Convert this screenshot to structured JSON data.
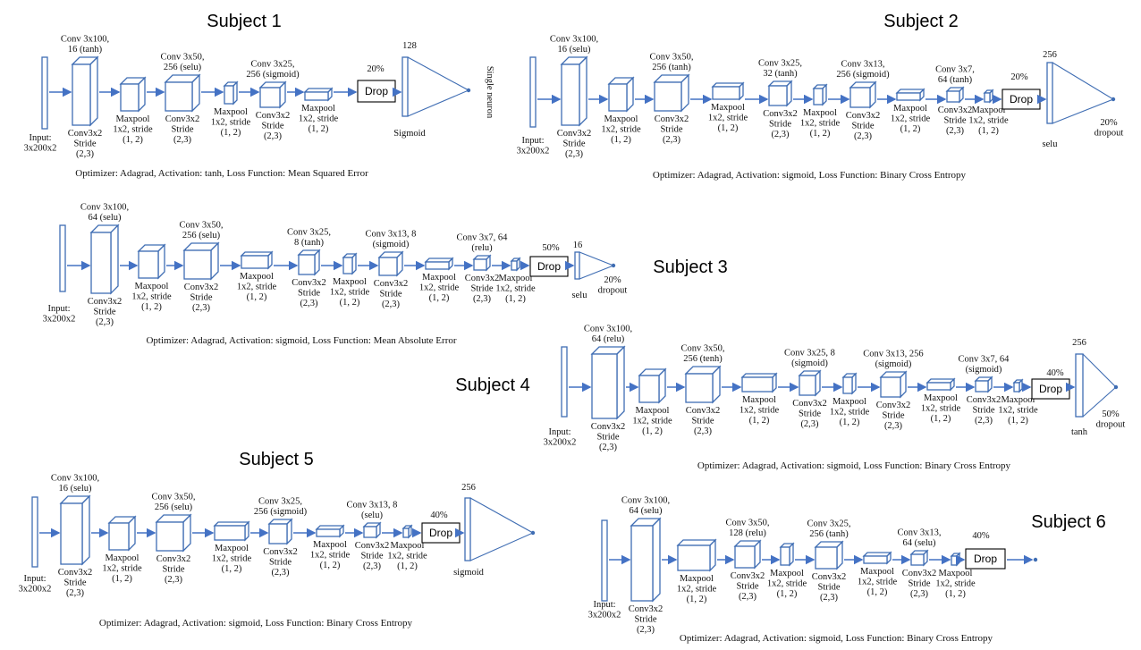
{
  "colors": {
    "box": "#3f6db3",
    "arrow": "#4472c4",
    "text": "#111111"
  },
  "subjects": [
    {
      "title": "Subject 1",
      "input_label": "Input:\n3x200x2",
      "layers": [
        {
          "kind": "conv",
          "top": "Conv 3x100,\n16 (tanh)",
          "bottom": "Conv3x2\nStride\n(2,3)"
        },
        {
          "kind": "pool",
          "top": "",
          "bottom": "Maxpool\n1x2, stride\n(1, 2)"
        },
        {
          "kind": "conv",
          "top": "Conv 3x50,\n256 (selu)",
          "bottom": "Conv3x2\nStride\n(2,3)"
        },
        {
          "kind": "pool",
          "top": "",
          "bottom": "Maxpool\n1x2, stride\n(1, 2)"
        },
        {
          "kind": "conv",
          "top": "Conv 3x25,\n256 (sigmoid)",
          "bottom": "Conv3x2\nStride\n(2,3)"
        },
        {
          "kind": "pool",
          "top": "",
          "bottom": "Maxpool\n1x2, stride\n(1, 2)"
        }
      ],
      "drop_label": "Drop",
      "drop_pct": "20%",
      "dense_units": "128",
      "dense_activation": "Sigmoid",
      "output_label": "Single neuron",
      "output_dropout": "",
      "footer": "Optimizer: Adagrad,  Activation: tanh,  Loss Function: Mean Squared Error"
    },
    {
      "title": "Subject 2",
      "input_label": "Input:\n3x200x2",
      "layers": [
        {
          "kind": "conv",
          "top": "Conv 3x100,\n16 (selu)",
          "bottom": "Conv3x2\nStride\n(2,3)"
        },
        {
          "kind": "pool",
          "top": "",
          "bottom": "Maxpool\n1x2, stride\n(1, 2)"
        },
        {
          "kind": "conv",
          "top": "Conv 3x50,\n256 (tanh)",
          "bottom": "Conv3x2\nStride\n(2,3)"
        },
        {
          "kind": "pool",
          "top": "",
          "bottom": "Maxpool\n1x2, stride\n(1, 2)"
        },
        {
          "kind": "conv",
          "top": "Conv 3x25,\n32 (tanh)",
          "bottom": "Conv3x2\nStride\n(2,3)"
        },
        {
          "kind": "pool",
          "top": "",
          "bottom": "Maxpool\n1x2, stride\n(1, 2)"
        },
        {
          "kind": "conv",
          "top": "Conv 3x13,\n256 (sigmoid)",
          "bottom": "Conv3x2\nStride\n(2,3)"
        },
        {
          "kind": "pool",
          "top": "",
          "bottom": "Maxpool\n1x2, stride\n(1, 2)"
        },
        {
          "kind": "conv",
          "top": "Conv 3x7,\n64 (tanh)",
          "bottom": "Conv3x2\nStride\n(2,3)"
        },
        {
          "kind": "pool",
          "top": "",
          "bottom": "Maxpool\n1x2, stride\n(1, 2)"
        }
      ],
      "drop_label": "Drop",
      "drop_pct": "20%",
      "dense_units": "256",
      "dense_activation": "selu",
      "output_label": "",
      "output_dropout": "20%\ndropout",
      "footer": "Optimizer: Adagrad,  Activation: sigmoid,  Loss Function: Binary Cross Entropy"
    },
    {
      "title": "Subject 3",
      "input_label": "Input:\n3x200x2",
      "layers": [
        {
          "kind": "conv",
          "top": "Conv 3x100,\n64 (selu)",
          "bottom": "Conv3x2\nStride\n(2,3)"
        },
        {
          "kind": "pool",
          "top": "",
          "bottom": "Maxpool\n1x2, stride\n(1, 2)"
        },
        {
          "kind": "conv",
          "top": "Conv 3x50,\n256 (selu)",
          "bottom": "Conv3x2\nStride\n(2,3)"
        },
        {
          "kind": "pool",
          "top": "",
          "bottom": "Maxpool\n1x2, stride\n(1, 2)"
        },
        {
          "kind": "conv",
          "top": "Conv 3x25,\n8 (tanh)",
          "bottom": "Conv3x2\nStride\n(2,3)"
        },
        {
          "kind": "pool",
          "top": "",
          "bottom": "Maxpool\n1x2, stride\n(1, 2)"
        },
        {
          "kind": "conv",
          "top": "Conv 3x13, 8\n(sigmoid)",
          "bottom": "Conv3x2\nStride\n(2,3)"
        },
        {
          "kind": "pool",
          "top": "",
          "bottom": "Maxpool\n1x2, stride\n(1, 2)"
        },
        {
          "kind": "conv",
          "top": "Conv 3x7, 64\n(relu)",
          "bottom": "Conv3x2\nStride\n(2,3)"
        },
        {
          "kind": "pool",
          "top": "",
          "bottom": "Maxpool\n1x2, stride\n(1, 2)"
        }
      ],
      "drop_label": "Drop",
      "drop_pct": "50%",
      "dense_units": "16",
      "dense_activation": "selu",
      "output_label": "",
      "output_dropout": "20%\ndropout",
      "footer": "Optimizer: Adagrad,  Activation: sigmoid,  Loss Function: Mean Absolute Error"
    },
    {
      "title": "Subject 4",
      "input_label": "Input:\n3x200x2",
      "layers": [
        {
          "kind": "conv",
          "top": "Conv 3x100,\n64 (relu)",
          "bottom": "Conv3x2\nStride\n(2,3)"
        },
        {
          "kind": "pool",
          "top": "",
          "bottom": "Maxpool\n1x2, stride\n(1, 2)"
        },
        {
          "kind": "conv",
          "top": "Conv 3x50,\n256 (tenh)",
          "bottom": "Conv3x2\nStride\n(2,3)"
        },
        {
          "kind": "pool",
          "top": "",
          "bottom": "Maxpool\n1x2, stride\n(1, 2)"
        },
        {
          "kind": "conv",
          "top": "Conv 3x25, 8\n(sigmoid)",
          "bottom": "Conv3x2\nStride\n(2,3)"
        },
        {
          "kind": "pool",
          "top": "",
          "bottom": "Maxpool\n1x2, stride\n(1, 2)"
        },
        {
          "kind": "conv",
          "top": "Conv 3x13, 256\n(sigmoid)",
          "bottom": "Conv3x2\nStride\n(2,3)"
        },
        {
          "kind": "pool",
          "top": "",
          "bottom": "Maxpool\n1x2, stride\n(1, 2)"
        },
        {
          "kind": "conv",
          "top": "Conv 3x7, 64\n(sigmoid)",
          "bottom": "Conv3x2\nStride\n(2,3)"
        },
        {
          "kind": "pool",
          "top": "",
          "bottom": "Maxpool\n1x2, stride\n(1, 2)"
        }
      ],
      "drop_label": "Drop",
      "drop_pct": "40%",
      "dense_units": "256",
      "dense_activation": "tanh",
      "output_label": "",
      "output_dropout": "50%\ndropout",
      "footer": "Optimizer: Adagrad,  Activation: sigmoid,  Loss Function: Binary Cross Entropy"
    },
    {
      "title": "Subject 5",
      "input_label": "Input:\n3x200x2",
      "layers": [
        {
          "kind": "conv",
          "top": "Conv 3x100,\n16 (selu)",
          "bottom": "Conv3x2\nStride\n(2,3)"
        },
        {
          "kind": "pool",
          "top": "",
          "bottom": "Maxpool\n1x2, stride\n(1, 2)"
        },
        {
          "kind": "conv",
          "top": "Conv 3x50,\n256 (selu)",
          "bottom": "Conv3x2\nStride\n(2,3)"
        },
        {
          "kind": "pool",
          "top": "",
          "bottom": "Maxpool\n1x2, stride\n(1, 2)"
        },
        {
          "kind": "conv",
          "top": "Conv 3x25,\n256 (sigmoid)",
          "bottom": "Conv3x2\nStride\n(2,3)"
        },
        {
          "kind": "pool",
          "top": "",
          "bottom": "Maxpool\n1x2, stride\n(1, 2)"
        },
        {
          "kind": "conv",
          "top": "Conv 3x13, 8\n(selu)",
          "bottom": "Conv3x2\nStride\n(2,3)"
        },
        {
          "kind": "pool",
          "top": "",
          "bottom": "Maxpool\n1x2, stride\n(1, 2)"
        }
      ],
      "drop_label": "Drop",
      "drop_pct": "40%",
      "dense_units": "256",
      "dense_activation": "sigmoid",
      "output_label": "",
      "output_dropout": "",
      "footer": "Optimizer: Adagrad,  Activation: sigmoid,  Loss Function: Binary Cross Entropy"
    },
    {
      "title": "Subject 6",
      "input_label": "Input:\n3x200x2",
      "layers": [
        {
          "kind": "conv",
          "top": "Conv 3x100,\n64 (selu)",
          "bottom": "Conv3x2\nStride\n(2,3)"
        },
        {
          "kind": "pool",
          "top": "",
          "bottom": "Maxpool\n1x2, stride\n(1, 2)"
        },
        {
          "kind": "conv",
          "top": "Conv 3x50,\n128 (relu)",
          "bottom": "Conv3x2\nStride\n(2,3)"
        },
        {
          "kind": "pool",
          "top": "",
          "bottom": "Maxpool\n1x2, stride\n(1, 2)"
        },
        {
          "kind": "conv",
          "top": "Conv 3x25,\n256 (tanh)",
          "bottom": "Conv3x2\nStride\n(2,3)"
        },
        {
          "kind": "pool",
          "top": "",
          "bottom": "Maxpool\n1x2, stride\n(1, 2)"
        },
        {
          "kind": "conv",
          "top": "Conv 3x13,\n64 (selu)",
          "bottom": "Conv3x2\nStride\n(2,3)"
        },
        {
          "kind": "pool",
          "top": "",
          "bottom": "Maxpool\n1x2, stride\n(1, 2)"
        }
      ],
      "drop_label": "Drop",
      "drop_pct": "40%",
      "dense_units": "",
      "dense_activation": "",
      "output_label": "",
      "output_dropout": "",
      "footer": "Optimizer: Adagrad,  Activation: sigmoid,  Loss Function: Binary Cross Entropy"
    }
  ]
}
